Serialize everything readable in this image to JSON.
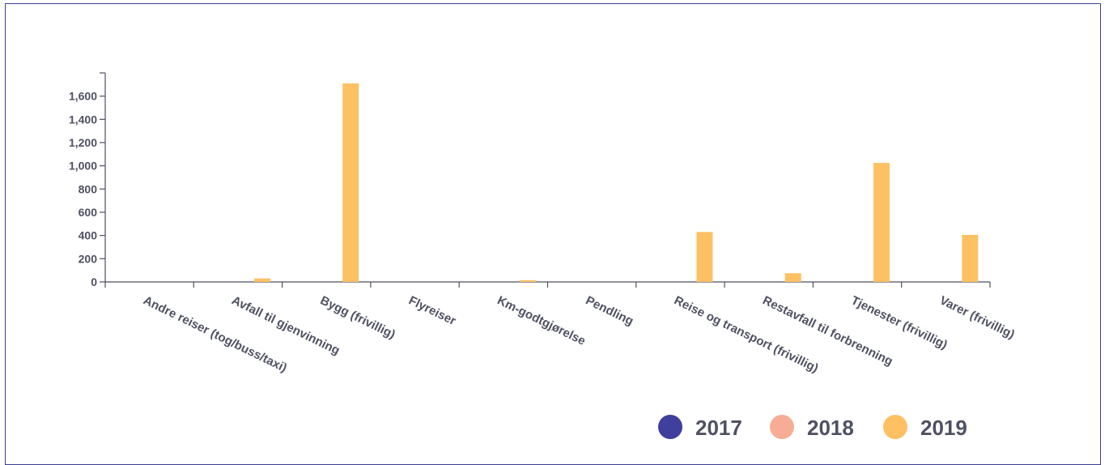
{
  "chart_data": {
    "type": "bar",
    "categories": [
      "Andre reiser (tog/buss/taxi)",
      "Avfall til gjenvinning",
      "Bygg (frivillig)",
      "Flyreiser",
      "Km-godtgjørelse",
      "Pendling",
      "Reise og transport (frivillig)",
      "Restavfall til forbrenning",
      "Tjenester (frivillig)",
      "Varer (frivillig)"
    ],
    "series": [
      {
        "name": "2017",
        "color": "#3f3f9e",
        "values": [
          0,
          0,
          0,
          0,
          0,
          0,
          0,
          0,
          0,
          0
        ]
      },
      {
        "name": "2018",
        "color": "#f7ad95",
        "values": [
          0,
          0,
          0,
          0,
          0,
          0,
          0,
          0,
          0,
          0
        ]
      },
      {
        "name": "2019",
        "color": "#fdc164",
        "values": [
          0,
          30,
          1710,
          0,
          15,
          0,
          430,
          75,
          1025,
          405
        ]
      }
    ],
    "yticks": [
      "0",
      "200",
      "400",
      "600",
      "800",
      "1,000",
      "1,200",
      "1,400",
      "1,600"
    ],
    "ylim": [
      0,
      1800
    ],
    "xlabel": "",
    "ylabel": "",
    "legend_position": "bottom-right",
    "grid": false
  }
}
